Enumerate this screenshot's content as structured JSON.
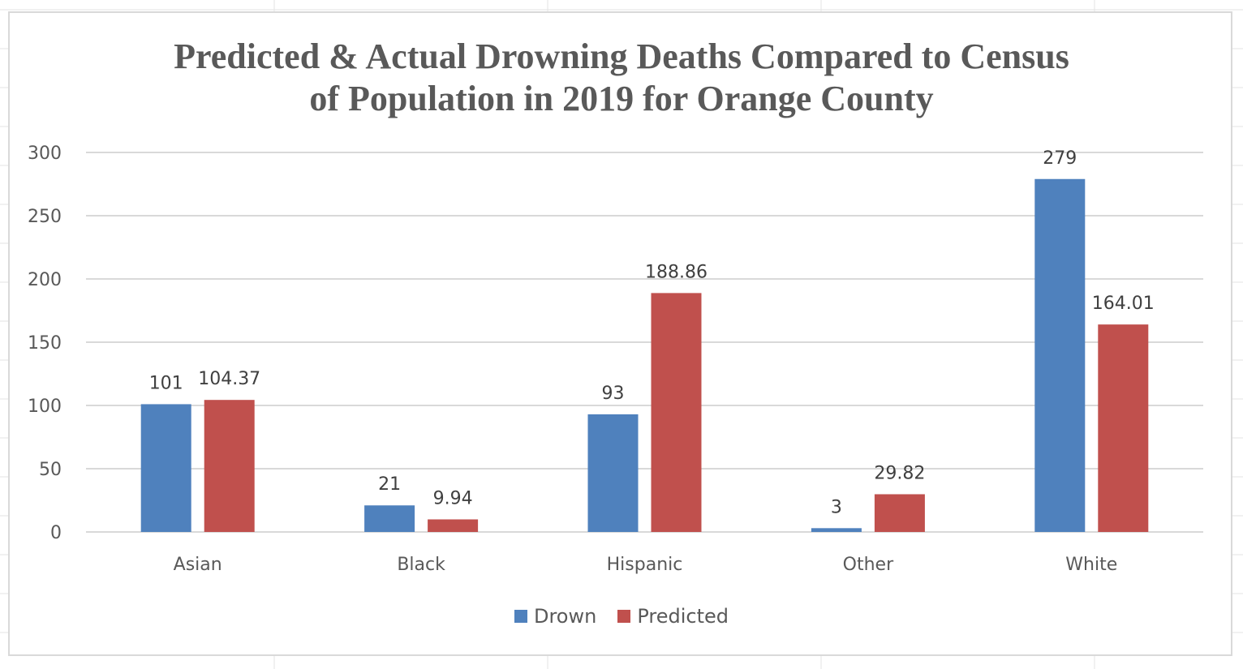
{
  "chart_data": {
    "type": "bar",
    "title": "Predicted & Actual Drowning Deaths Compared to Census of Population in 2019 for Orange County",
    "title_lines": [
      "Predicted & Actual Drowning Deaths Compared to Census",
      "of Population in 2019 for Orange County"
    ],
    "xlabel": "",
    "ylabel": "",
    "categories": [
      "Asian",
      "Black",
      "Hispanic",
      "Other",
      "White"
    ],
    "series": [
      {
        "name": "Drown",
        "color": "#4F81BD",
        "values": [
          101,
          21,
          93,
          3,
          279
        ],
        "labels": [
          "101",
          "21",
          "93",
          "3",
          "279"
        ]
      },
      {
        "name": "Predicted",
        "color": "#C0504D",
        "values": [
          104.37,
          9.94,
          188.86,
          29.82,
          164.01
        ],
        "labels": [
          "104.37",
          "9.94",
          "188.86",
          "29.82",
          "164.01"
        ]
      }
    ],
    "ylim": [
      0,
      300
    ],
    "yticks": [
      0,
      50,
      100,
      150,
      200,
      250,
      300
    ],
    "ytick_labels": [
      "0",
      "50",
      "100",
      "150",
      "200",
      "250",
      "300"
    ],
    "grid": true,
    "legend_position": "bottom"
  }
}
